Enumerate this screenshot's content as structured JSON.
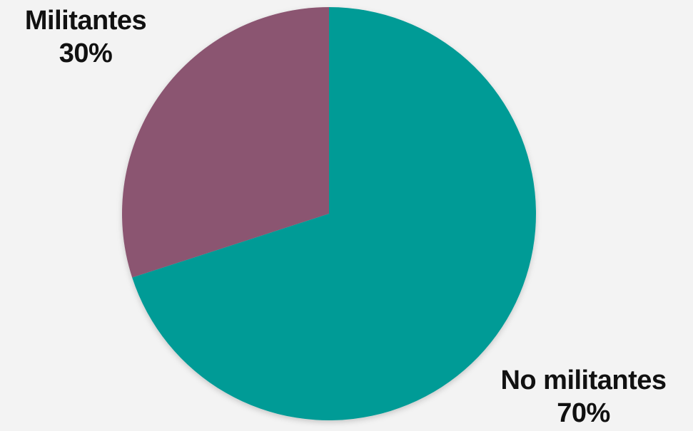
{
  "chart_data": {
    "type": "pie",
    "start_angle_deg": 0,
    "direction": "counterclockwise",
    "slices": [
      {
        "label": "Militantes",
        "value": 30,
        "value_label": "30%",
        "color": "#8b5571"
      },
      {
        "label": "No militantes",
        "value": 70,
        "value_label": "70%",
        "color": "#069b96"
      }
    ]
  }
}
